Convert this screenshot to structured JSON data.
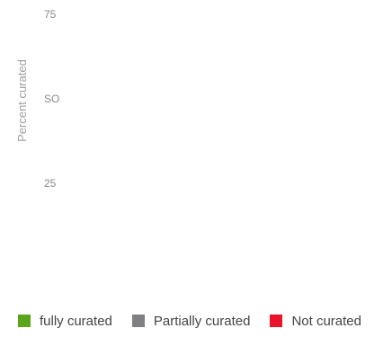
{
  "chart_data": {
    "type": "bar",
    "ylabel": "Percent curated",
    "y_ticks": [
      {
        "value": 75,
        "label": "75"
      },
      {
        "value": 50,
        "label": "SO"
      },
      {
        "value": 25,
        "label": "25"
      }
    ],
    "ylim": [
      0,
      80
    ],
    "grid": false,
    "legend_placement": "bottom",
    "categories": [],
    "series": [
      {
        "name": "fully curated",
        "color": "#5aa51c",
        "values": []
      },
      {
        "name": "Partially curated",
        "color": "#807f84",
        "values": []
      },
      {
        "name": "Not curated",
        "color": "#e8142a",
        "values": []
      }
    ]
  }
}
